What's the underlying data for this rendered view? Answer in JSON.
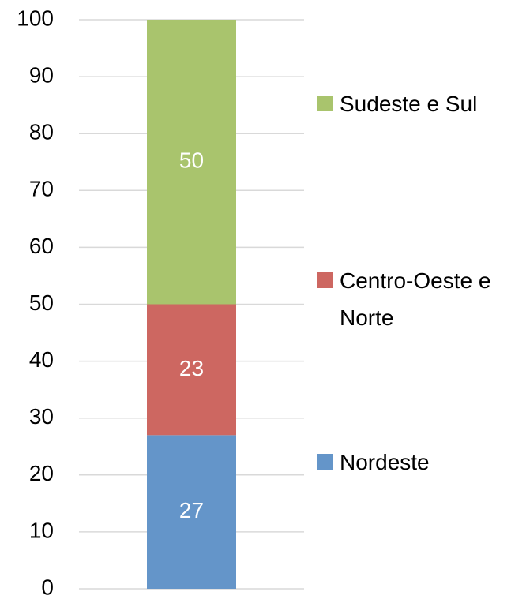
{
  "chart_data": {
    "type": "stacked_bar",
    "categories": [
      null
    ],
    "series": [
      {
        "name": "Nordeste",
        "color": "#6495c9",
        "values": [
          27
        ]
      },
      {
        "name": "Centro-Oeste e Norte",
        "color": "#cd6761",
        "values": [
          23
        ]
      },
      {
        "name": "Sudeste e Sul",
        "color": "#a9c46d",
        "values": [
          50
        ]
      }
    ],
    "ylim": [
      0,
      100
    ],
    "yticks": [
      0,
      10,
      20,
      30,
      40,
      50,
      60,
      70,
      80,
      90,
      100
    ],
    "grid": true,
    "legend": "right"
  }
}
